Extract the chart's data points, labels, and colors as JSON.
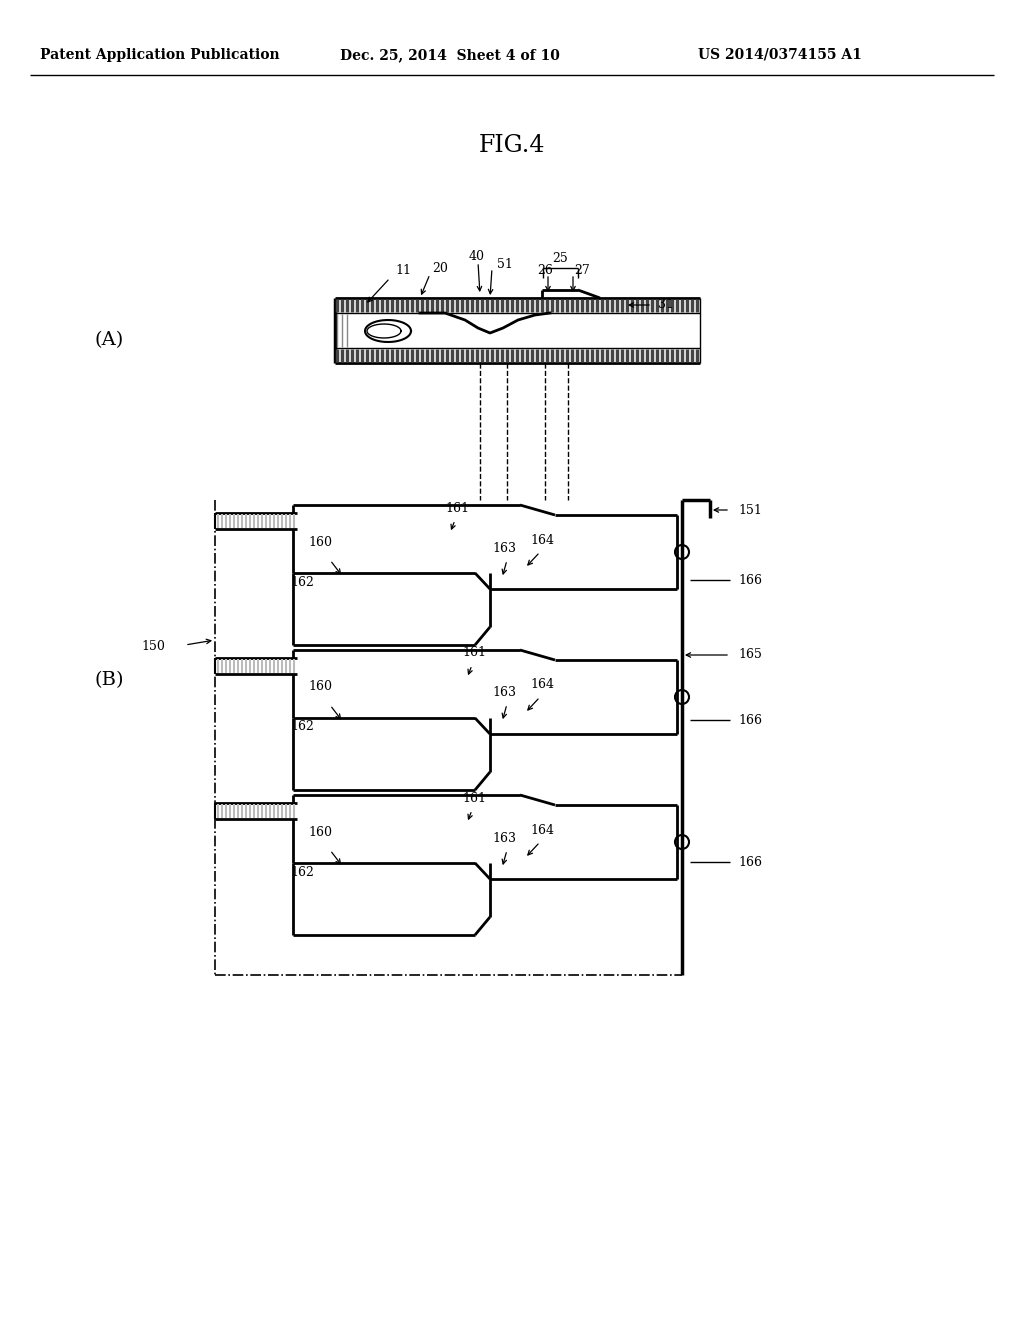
{
  "bg_color": "#ffffff",
  "line_color": "#000000",
  "fig_title": "FIG.4",
  "header_left": "Patent Application Publication",
  "header_mid": "Dec. 25, 2014  Sheet 4 of 10",
  "header_right": "US 2014/0374155 A1"
}
